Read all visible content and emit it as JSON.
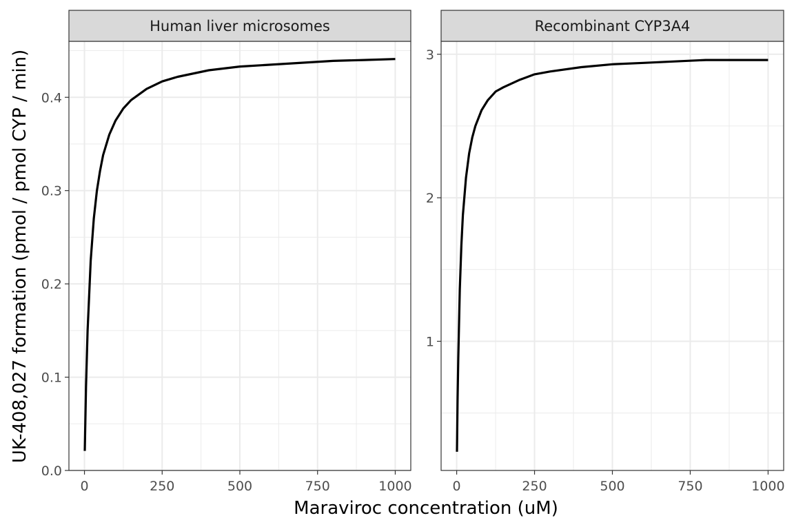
{
  "chart_data": {
    "type": "line",
    "xlabel": "Maraviroc concentration (uM)",
    "ylabel": "UK-408,027 formation (pmol / pmol CYP / min)",
    "legend": "none",
    "grid": true,
    "colors": {
      "line": "#000000",
      "panel_border": "#333333",
      "strip_fill": "#d9d9d9",
      "grid_major": "#ebebeb"
    },
    "panels": [
      {
        "title": "Human liver microsomes",
        "xlim": [
          -50,
          1050
        ],
        "ylim": [
          0,
          0.46
        ],
        "x_ticks": [
          0,
          250,
          500,
          750,
          1000
        ],
        "x_tick_labels": [
          "0",
          "250",
          "500",
          "750",
          "1000"
        ],
        "y_ticks": [
          0,
          0.1,
          0.2,
          0.3,
          0.4
        ],
        "y_tick_labels": [
          "0.0",
          "0.1",
          "0.2",
          "0.3",
          "0.4"
        ],
        "vmax": 0.45,
        "km": 20,
        "x": [
          1,
          5,
          10,
          20,
          30,
          40,
          50,
          60,
          80,
          100,
          125,
          150,
          200,
          250,
          300,
          400,
          500,
          600,
          700,
          800,
          900,
          1000
        ],
        "y": [
          0.021,
          0.09,
          0.15,
          0.225,
          0.27,
          0.3,
          0.321,
          0.338,
          0.36,
          0.375,
          0.388,
          0.397,
          0.409,
          0.417,
          0.422,
          0.429,
          0.433,
          0.435,
          0.437,
          0.439,
          0.44,
          0.441
        ]
      },
      {
        "title": "Recombinant CYP3A4",
        "xlim": [
          -50,
          1050
        ],
        "ylim": [
          0.1,
          3.09
        ],
        "x_ticks": [
          0,
          250,
          500,
          750,
          1000
        ],
        "x_tick_labels": [
          "0",
          "250",
          "500",
          "750",
          "1000"
        ],
        "y_ticks": [
          1,
          2,
          3
        ],
        "y_tick_labels": [
          "1",
          "2",
          "3"
        ],
        "vmax": 3.0,
        "km": 12,
        "x": [
          1,
          3,
          5,
          10,
          15,
          20,
          30,
          40,
          50,
          60,
          80,
          100,
          125,
          150,
          200,
          250,
          300,
          400,
          500,
          600,
          700,
          800,
          900,
          1000
        ],
        "y": [
          0.23,
          0.6,
          0.88,
          1.36,
          1.67,
          1.88,
          2.14,
          2.31,
          2.42,
          2.5,
          2.61,
          2.68,
          2.74,
          2.77,
          2.82,
          2.86,
          2.88,
          2.91,
          2.93,
          2.94,
          2.95,
          2.96,
          2.96,
          2.96
        ]
      }
    ]
  }
}
